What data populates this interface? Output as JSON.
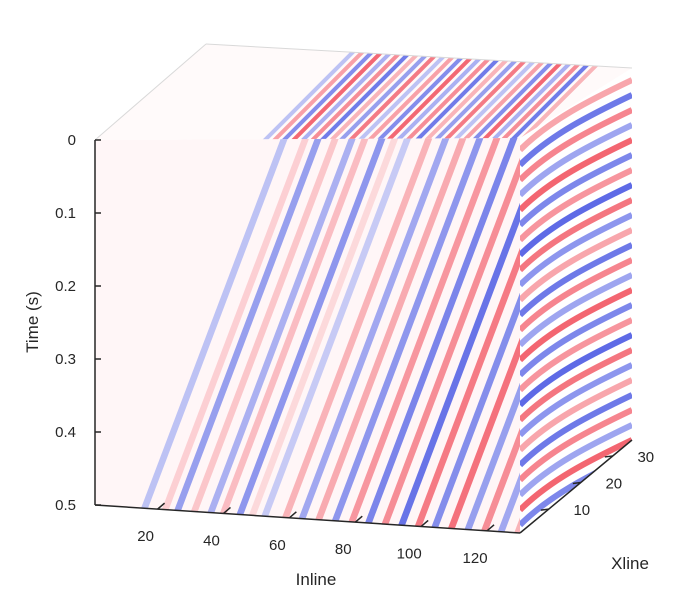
{
  "chart_data": {
    "type": "heatmap",
    "view": "3d-volume-cube",
    "title": "",
    "colormap": {
      "name": "red-white-blue",
      "negative": "#2233dd",
      "zero": "#ffffff",
      "positive": "#ee2233"
    },
    "axes": {
      "inline": {
        "label": "Inline",
        "range": [
          1,
          130
        ],
        "ticks": [
          20,
          40,
          60,
          80,
          100,
          120
        ]
      },
      "xline": {
        "label": "Xline",
        "range": [
          1,
          36
        ],
        "ticks": [
          10,
          20,
          30
        ]
      },
      "time": {
        "label": "Time (s)",
        "range": [
          0,
          0.5
        ],
        "reversed": true,
        "ticks": [
          0,
          0.1,
          0.2,
          0.3,
          0.4,
          0.5
        ]
      }
    },
    "faces": [
      "front inline-time section",
      "right xline-time section",
      "top time-slice"
    ],
    "grid": false,
    "legend": "none"
  }
}
